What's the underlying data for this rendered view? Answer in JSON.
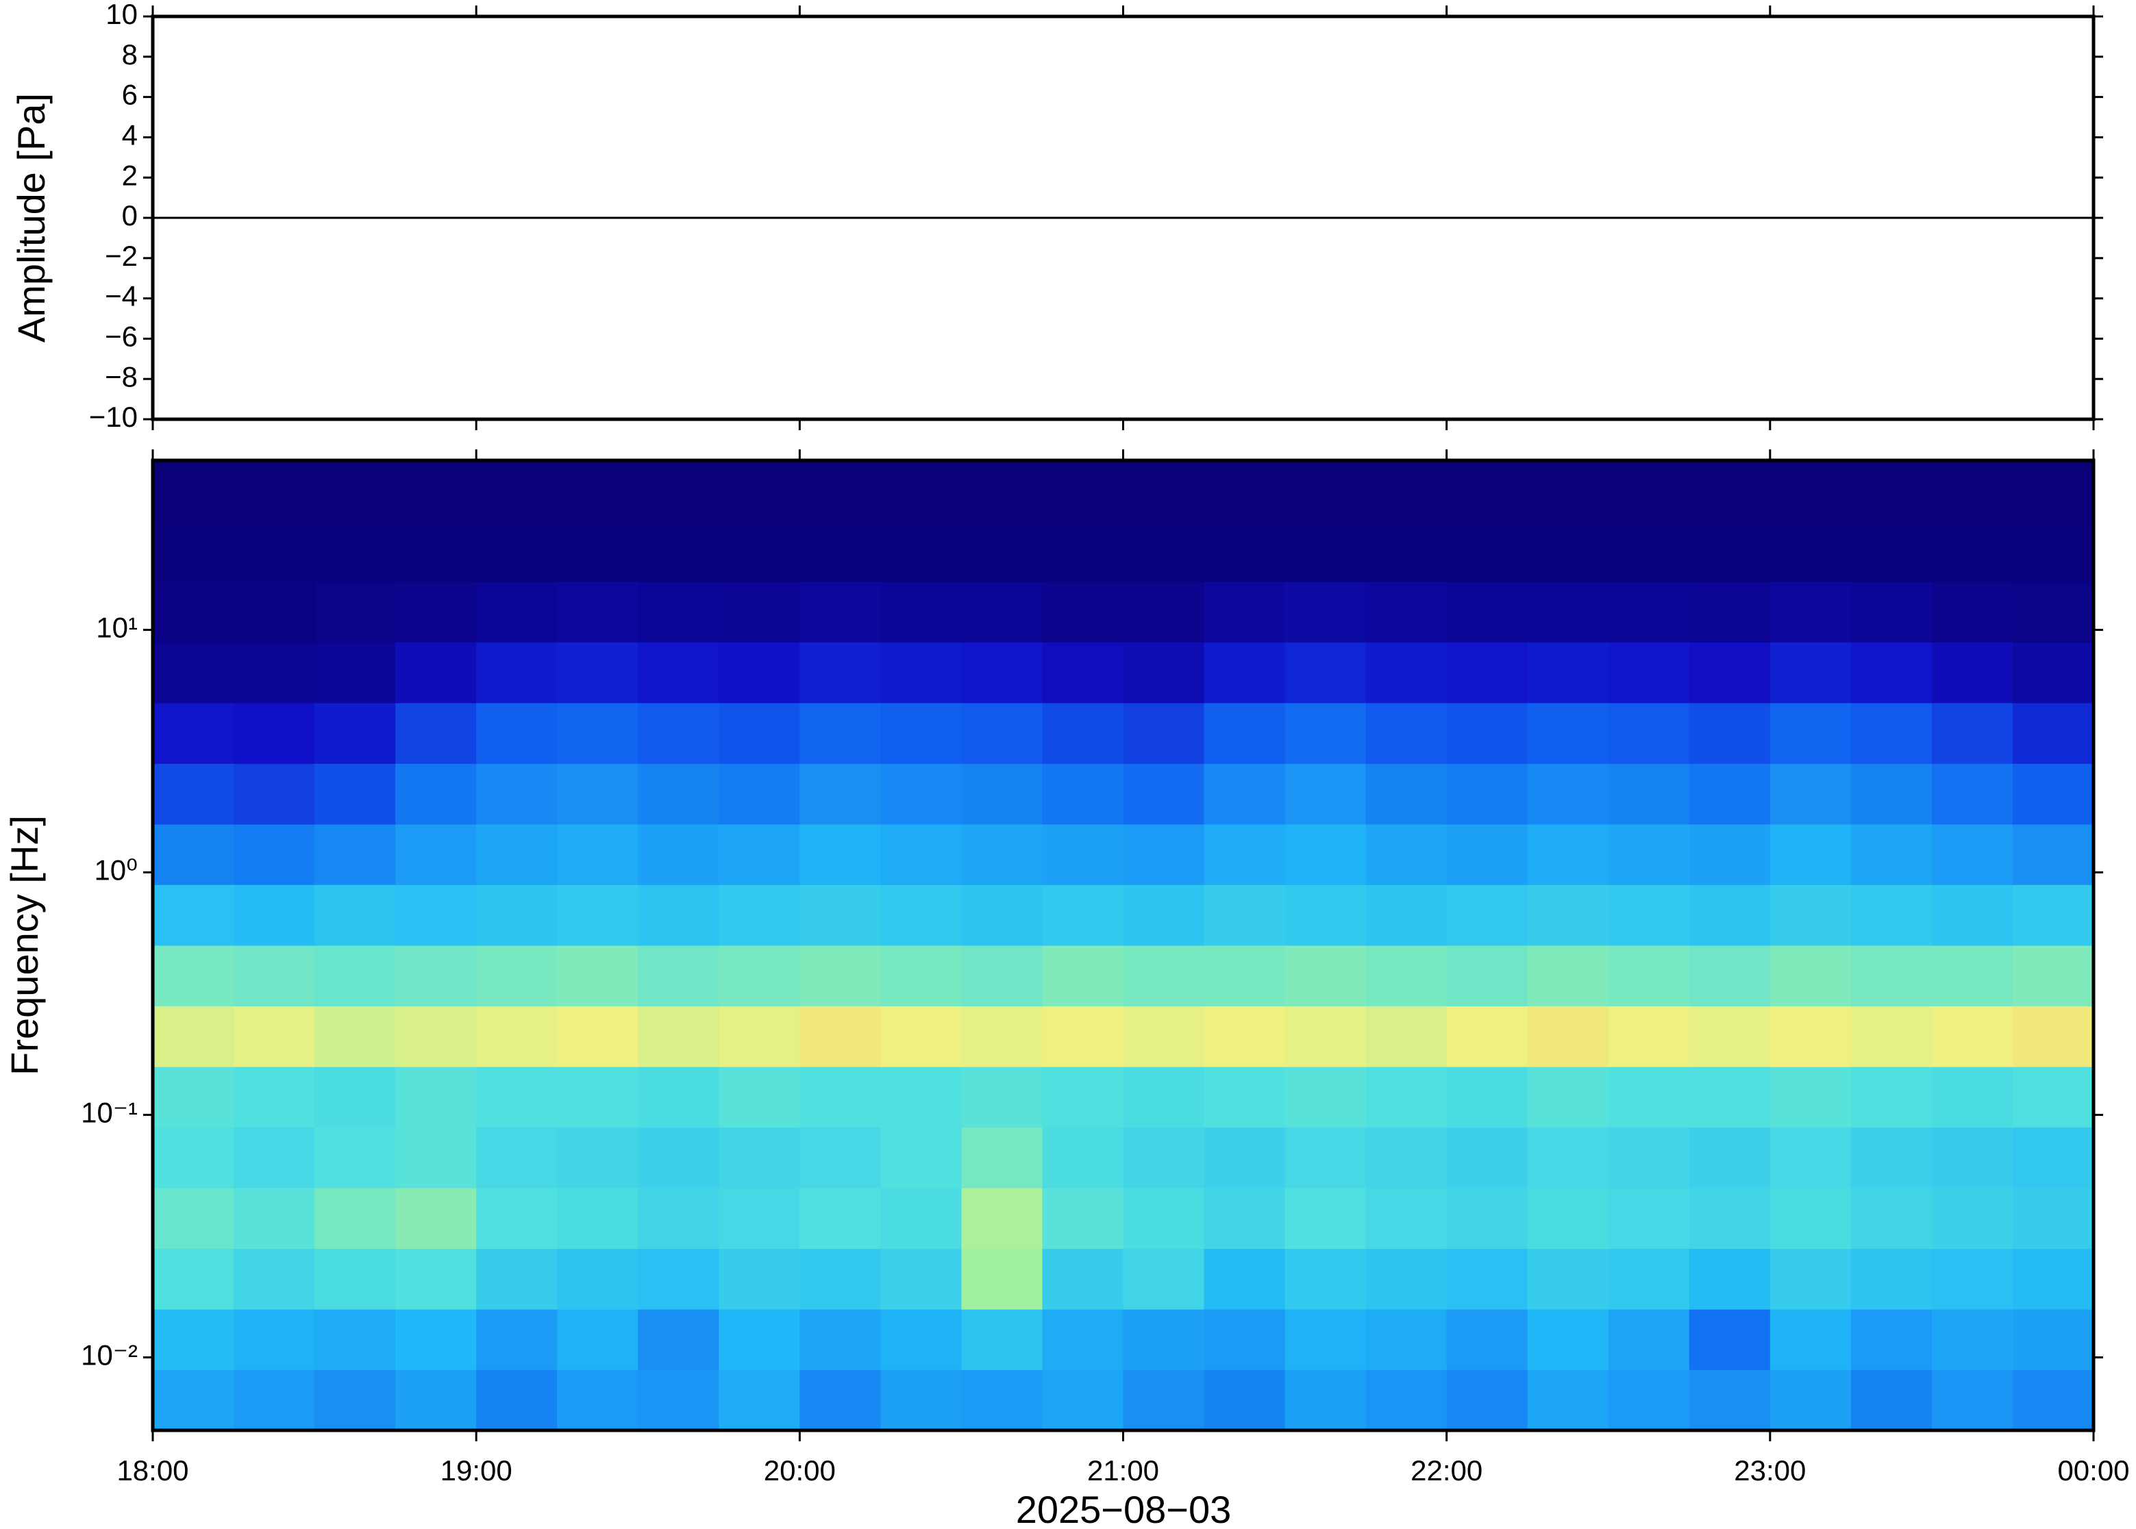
{
  "chart_data": [
    {
      "type": "line",
      "ylabel": "Amplitude [Pa]",
      "xlim": [
        18,
        24
      ],
      "ylim": [
        -10,
        10
      ],
      "yticks": [
        {
          "value": -10,
          "label": "−10"
        },
        {
          "value": -8,
          "label": "−8"
        },
        {
          "value": -6,
          "label": "−6"
        },
        {
          "value": -4,
          "label": "−4"
        },
        {
          "value": -2,
          "label": "−2"
        },
        0,
        2,
        4,
        6,
        8,
        10
      ],
      "x": [
        18,
        18.25,
        18.5,
        18.75,
        19,
        19.25,
        19.5,
        19.75,
        20,
        20.25,
        20.5,
        20.75,
        21,
        21.25,
        21.5,
        21.75,
        22,
        22.25,
        22.5,
        22.75,
        23,
        23.25,
        23.5,
        23.75,
        24
      ],
      "values": [
        0,
        0,
        0,
        0,
        0,
        0,
        0,
        0,
        0,
        0,
        0,
        0,
        0,
        0,
        0,
        0,
        0,
        0,
        0,
        0,
        0,
        0,
        0,
        0,
        0
      ],
      "color": "#000000"
    },
    {
      "type": "heatmap",
      "ylabel": "Frequency [Hz]",
      "xlabel": "2025−08−03",
      "log_y": true,
      "xlim": [
        18,
        24
      ],
      "xticks": [
        {
          "value": 18,
          "label": "18:00"
        },
        {
          "value": 19,
          "label": "19:00"
        },
        {
          "value": 20,
          "label": "20:00"
        },
        {
          "value": 21,
          "label": "21:00"
        },
        {
          "value": 22,
          "label": "22:00"
        },
        {
          "value": 23,
          "label": "23:00"
        },
        {
          "value": 24,
          "label": "00:00"
        }
      ],
      "ylim": [
        0.005,
        50
      ],
      "yticks": [
        {
          "value": 0.01,
          "label": "10⁻²"
        },
        {
          "value": 0.1,
          "label": "10⁻¹"
        },
        {
          "value": 1,
          "label": "10⁰"
        },
        {
          "value": 10,
          "label": "10¹"
        }
      ],
      "x_bins": [
        18,
        18.25,
        18.5,
        18.75,
        19,
        19.25,
        19.5,
        19.75,
        20,
        20.25,
        20.5,
        20.75,
        21,
        21.25,
        21.5,
        21.75,
        22,
        22.25,
        22.5,
        22.75,
        23,
        23.25,
        23.5,
        23.75,
        24
      ],
      "y_bins": [
        0.005,
        0.0089,
        0.0158,
        0.0281,
        0.05,
        0.089,
        0.158,
        0.281,
        0.5,
        0.89,
        1.58,
        2.81,
        5,
        8.9,
        15.8,
        28.1,
        50
      ],
      "colormap": [
        {
          "value": 0,
          "color": "#0a0078"
        },
        {
          "value": 0.15,
          "color": "#1010c8"
        },
        {
          "value": 0.3,
          "color": "#1060f0"
        },
        {
          "value": 0.45,
          "color": "#20b8f8"
        },
        {
          "value": 0.55,
          "color": "#50e0e0"
        },
        {
          "value": 0.65,
          "color": "#a0f0a0"
        },
        {
          "value": 0.72,
          "color": "#f0f080"
        },
        {
          "value": 0.8,
          "color": "#f8b060"
        }
      ],
      "z": [
        [
          0.42,
          0.4,
          0.38,
          0.41,
          0.36,
          0.4,
          0.39,
          0.43,
          0.37,
          0.41,
          0.4,
          0.42,
          0.38,
          0.36,
          0.41,
          0.39,
          0.37,
          0.42,
          0.4,
          0.38,
          0.41,
          0.36,
          0.39,
          0.37
        ],
        [
          0.46,
          0.44,
          0.43,
          0.45,
          0.4,
          0.44,
          0.38,
          0.45,
          0.42,
          0.44,
          0.48,
          0.43,
          0.41,
          0.4,
          0.44,
          0.43,
          0.4,
          0.45,
          0.42,
          0.33,
          0.44,
          0.4,
          0.42,
          0.41
        ],
        [
          0.55,
          0.52,
          0.54,
          0.55,
          0.5,
          0.48,
          0.47,
          0.5,
          0.49,
          0.51,
          0.65,
          0.5,
          0.52,
          0.46,
          0.49,
          0.48,
          0.47,
          0.5,
          0.49,
          0.46,
          0.5,
          0.48,
          0.47,
          0.46
        ],
        [
          0.58,
          0.56,
          0.6,
          0.62,
          0.55,
          0.54,
          0.52,
          0.53,
          0.55,
          0.54,
          0.66,
          0.56,
          0.54,
          0.52,
          0.55,
          0.53,
          0.52,
          0.54,
          0.53,
          0.52,
          0.54,
          0.52,
          0.51,
          0.5
        ],
        [
          0.55,
          0.53,
          0.55,
          0.56,
          0.53,
          0.52,
          0.51,
          0.52,
          0.53,
          0.55,
          0.6,
          0.54,
          0.52,
          0.51,
          0.53,
          0.52,
          0.51,
          0.53,
          0.52,
          0.51,
          0.53,
          0.51,
          0.5,
          0.49
        ],
        [
          0.56,
          0.55,
          0.54,
          0.56,
          0.55,
          0.55,
          0.54,
          0.56,
          0.55,
          0.55,
          0.56,
          0.55,
          0.54,
          0.55,
          0.56,
          0.55,
          0.54,
          0.56,
          0.55,
          0.55,
          0.56,
          0.55,
          0.54,
          0.55
        ],
        [
          0.7,
          0.71,
          0.69,
          0.7,
          0.71,
          0.72,
          0.7,
          0.71,
          0.73,
          0.72,
          0.71,
          0.72,
          0.71,
          0.72,
          0.71,
          0.7,
          0.72,
          0.73,
          0.72,
          0.71,
          0.72,
          0.71,
          0.72,
          0.73
        ],
        [
          0.6,
          0.59,
          0.58,
          0.59,
          0.6,
          0.61,
          0.59,
          0.6,
          0.61,
          0.6,
          0.59,
          0.61,
          0.6,
          0.6,
          0.61,
          0.6,
          0.59,
          0.61,
          0.6,
          0.59,
          0.61,
          0.6,
          0.6,
          0.61
        ],
        [
          0.47,
          0.46,
          0.48,
          0.47,
          0.48,
          0.49,
          0.48,
          0.49,
          0.5,
          0.49,
          0.48,
          0.49,
          0.48,
          0.5,
          0.49,
          0.48,
          0.49,
          0.5,
          0.49,
          0.48,
          0.5,
          0.49,
          0.48,
          0.49
        ],
        [
          0.36,
          0.35,
          0.37,
          0.4,
          0.42,
          0.43,
          0.41,
          0.42,
          0.44,
          0.43,
          0.42,
          0.41,
          0.4,
          0.43,
          0.44,
          0.42,
          0.41,
          0.43,
          0.42,
          0.41,
          0.44,
          0.42,
          0.4,
          0.38
        ],
        [
          0.26,
          0.24,
          0.27,
          0.34,
          0.37,
          0.38,
          0.36,
          0.35,
          0.38,
          0.37,
          0.36,
          0.34,
          0.32,
          0.37,
          0.39,
          0.36,
          0.35,
          0.37,
          0.36,
          0.34,
          0.38,
          0.36,
          0.33,
          0.3
        ],
        [
          0.16,
          0.15,
          0.17,
          0.25,
          0.3,
          0.31,
          0.29,
          0.28,
          0.31,
          0.3,
          0.29,
          0.26,
          0.24,
          0.3,
          0.32,
          0.29,
          0.28,
          0.3,
          0.29,
          0.27,
          0.31,
          0.29,
          0.25,
          0.2
        ],
        [
          0.05,
          0.05,
          0.06,
          0.12,
          0.17,
          0.18,
          0.16,
          0.15,
          0.18,
          0.17,
          0.16,
          0.13,
          0.11,
          0.17,
          0.19,
          0.17,
          0.16,
          0.17,
          0.16,
          0.14,
          0.18,
          0.16,
          0.12,
          0.08
        ],
        [
          0.02,
          0.02,
          0.03,
          0.04,
          0.06,
          0.07,
          0.06,
          0.05,
          0.07,
          0.06,
          0.06,
          0.04,
          0.04,
          0.07,
          0.08,
          0.07,
          0.06,
          0.06,
          0.06,
          0.05,
          0.07,
          0.06,
          0.04,
          0.03
        ],
        [
          0.01,
          0.01,
          0.01,
          0.01,
          0.01,
          0.01,
          0.01,
          0.01,
          0.01,
          0.01,
          0.01,
          0.01,
          0.01,
          0.01,
          0.01,
          0.01,
          0.01,
          0.01,
          0.01,
          0.01,
          0.01,
          0.01,
          0.01,
          0.01
        ],
        [
          0,
          0,
          0,
          0,
          0,
          0,
          0,
          0,
          0,
          0,
          0,
          0,
          0,
          0,
          0,
          0,
          0,
          0,
          0,
          0,
          0,
          0,
          0,
          0
        ]
      ]
    }
  ]
}
